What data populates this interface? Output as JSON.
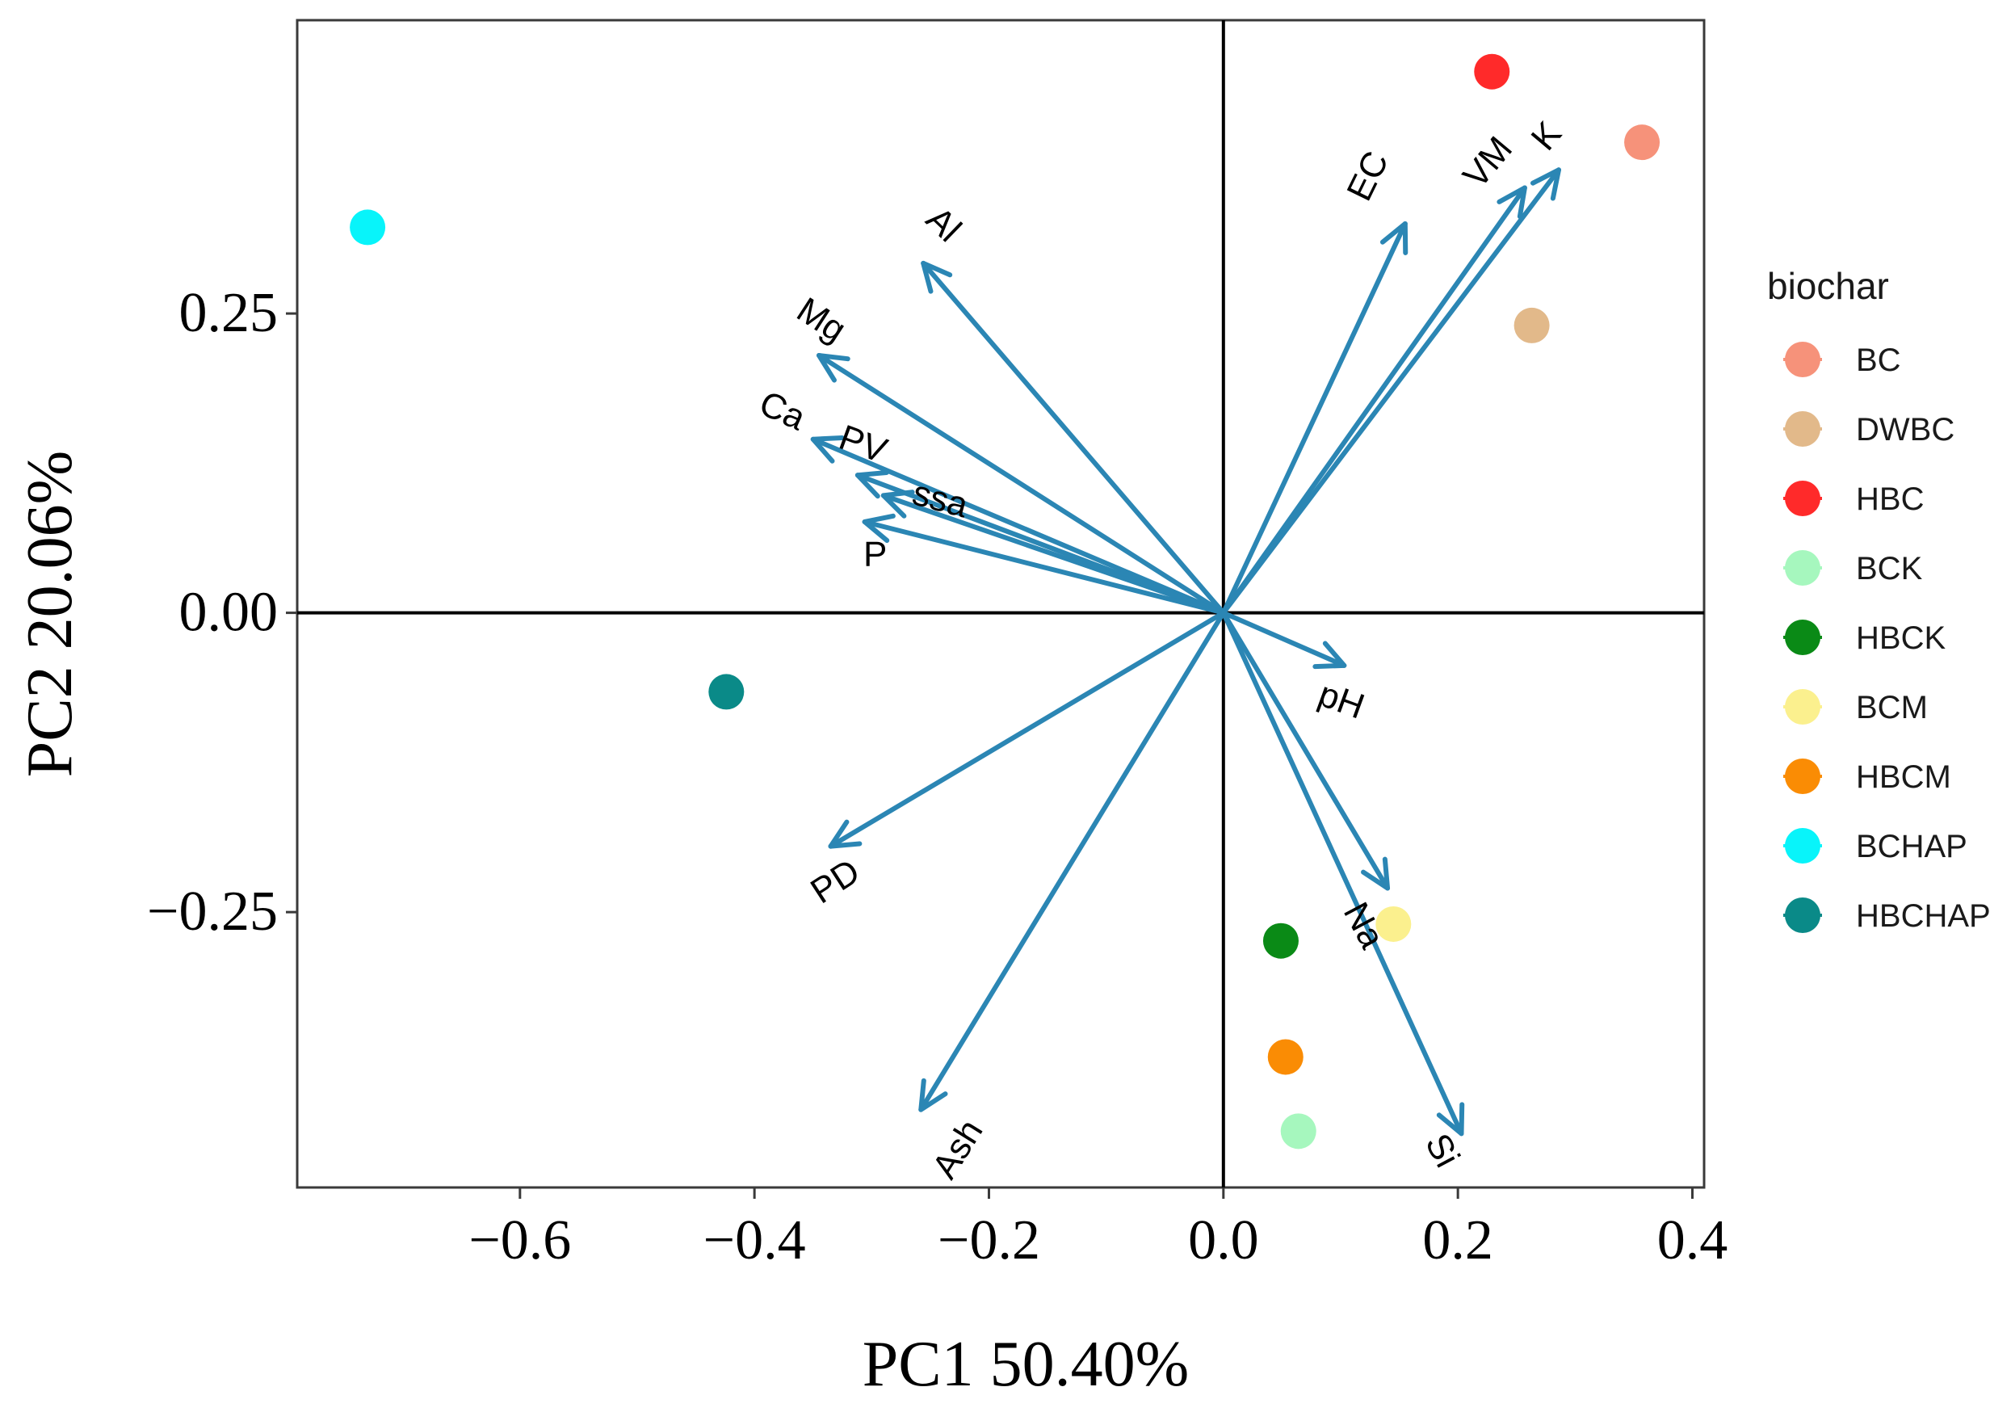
{
  "chart_data": {
    "type": "scatter",
    "subtype": "pca-biplot",
    "xlabel": "PC1 50.40%",
    "ylabel": "PC2 20.06%",
    "xlim": [
      -0.79,
      0.41
    ],
    "ylim": [
      -0.48,
      0.495
    ],
    "x_ticks": [
      -0.6,
      -0.4,
      -0.2,
      0.0,
      0.2,
      0.4
    ],
    "x_tick_labels": [
      "−0.6",
      "−0.4",
      "−0.2",
      "0.0",
      "0.2",
      "0.4"
    ],
    "y_ticks": [
      0.25,
      0.0,
      -0.25
    ],
    "y_tick_labels": [
      "0.25",
      "0.00",
      "−0.25"
    ],
    "grid": false,
    "reference_lines": {
      "x": 0,
      "y": 0
    },
    "arrow_color": "#2B86B4",
    "loadings": [
      {
        "name": "Al",
        "x": -0.256,
        "y": 0.292,
        "label_x": -0.24,
        "label_y": 0.323,
        "label_angle": 44
      },
      {
        "name": "Mg",
        "x": -0.345,
        "y": 0.215,
        "label_x": -0.344,
        "label_y": 0.243,
        "label_angle": 33
      },
      {
        "name": "Ca",
        "x": -0.35,
        "y": 0.145,
        "label_x": -0.377,
        "label_y": 0.167,
        "label_angle": 24
      },
      {
        "name": "PV",
        "x": -0.312,
        "y": 0.115,
        "label_x": -0.308,
        "label_y": 0.139,
        "label_angle": 20
      },
      {
        "name": "ssa",
        "x": -0.29,
        "y": 0.098,
        "label_x": -0.242,
        "label_y": 0.093,
        "label_angle": 15
      },
      {
        "name": "P",
        "x": -0.306,
        "y": 0.076,
        "label_x": -0.297,
        "label_y": 0.047,
        "label_angle": 0
      },
      {
        "name": "EC",
        "x": 0.155,
        "y": 0.325,
        "label_x": 0.125,
        "label_y": 0.364,
        "label_angle": -64
      },
      {
        "name": "VM",
        "x": 0.257,
        "y": 0.355,
        "label_x": 0.227,
        "label_y": 0.375,
        "label_angle": -50
      },
      {
        "name": "K",
        "x": 0.286,
        "y": 0.37,
        "label_x": 0.277,
        "label_y": 0.397,
        "label_angle": -50
      },
      {
        "name": "pH",
        "x": 0.103,
        "y": -0.044,
        "label_x": 0.1,
        "label_y": -0.075,
        "label_angle": 20
      },
      {
        "name": "PD",
        "x": -0.335,
        "y": -0.195,
        "label_x": -0.33,
        "label_y": -0.226,
        "label_angle": -33
      },
      {
        "name": "Na",
        "x": 0.14,
        "y": -0.23,
        "label_x": 0.118,
        "label_y": -0.262,
        "label_angle": 62
      },
      {
        "name": "Ash",
        "x": -0.258,
        "y": -0.415,
        "label_x": -0.225,
        "label_y": -0.449,
        "label_angle": -58
      },
      {
        "name": "Si",
        "x": 0.203,
        "y": -0.435,
        "label_x": 0.185,
        "label_y": -0.45,
        "label_angle": 62
      }
    ],
    "series": [
      {
        "name": "BC",
        "color": "#F6927A",
        "x": 0.357,
        "y": 0.393
      },
      {
        "name": "DWBC",
        "color": "#E2B98A",
        "x": 0.263,
        "y": 0.24
      },
      {
        "name": "HBC",
        "color": "#FF2A2A",
        "x": 0.229,
        "y": 0.452
      },
      {
        "name": "BCK",
        "color": "#A6F7BE",
        "x": 0.064,
        "y": -0.433
      },
      {
        "name": "HBCK",
        "color": "#0A8A16",
        "x": 0.049,
        "y": -0.274
      },
      {
        "name": "BCM",
        "color": "#FBF08E",
        "x": 0.145,
        "y": -0.26
      },
      {
        "name": "HBCM",
        "color": "#FA8C04",
        "x": 0.053,
        "y": -0.371
      },
      {
        "name": "BCHAP",
        "color": "#08F4FA",
        "x": -0.73,
        "y": 0.322
      },
      {
        "name": "HBCHAP",
        "color": "#0A8A88",
        "x": -0.424,
        "y": -0.066
      }
    ],
    "legend": {
      "title": "biochar",
      "position": "right",
      "entries": [
        "BC",
        "DWBC",
        "HBC",
        "BCK",
        "HBCK",
        "BCM",
        "HBCM",
        "BCHAP",
        "HBCHAP"
      ]
    }
  }
}
